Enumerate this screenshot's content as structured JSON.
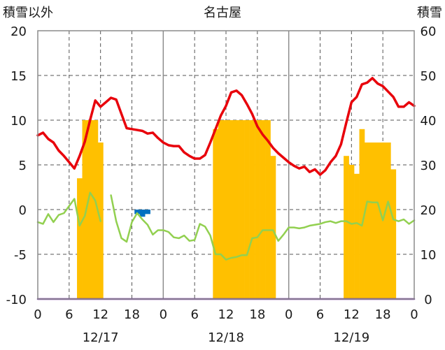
{
  "chart_data": {
    "type": "bar+line",
    "title": "名古屋",
    "left_axis_label": "積雪以外",
    "right_axis_label": "積雪",
    "left_ylim": [
      -10,
      20
    ],
    "left_yticks": [
      -10,
      -5,
      0,
      5,
      10,
      15,
      20
    ],
    "right_ylim": [
      0,
      60
    ],
    "right_yticks": [
      0,
      10,
      20,
      30,
      40,
      50,
      60
    ],
    "x_ticks": [
      "0",
      "6",
      "12",
      "18",
      "0",
      "6",
      "12",
      "18",
      "0",
      "6",
      "12",
      "18",
      "0"
    ],
    "date_labels": [
      "12/17",
      "12/18",
      "12/19"
    ],
    "grid": "dashed at 6h, solid at 0h",
    "series": [
      {
        "color": "#e8000b",
        "axis": "left",
        "values": [
          8.3,
          8.6,
          7.9,
          7.5,
          6.6,
          6.0,
          5.3,
          4.6,
          6.0,
          7.6,
          10.0,
          12.2,
          11.5,
          12.0,
          12.5,
          12.3,
          10.7,
          9.1,
          9.0,
          8.9,
          8.8,
          8.5,
          8.6,
          8.0,
          7.5,
          7.2,
          7.1,
          7.1,
          6.4,
          6.0,
          5.7,
          5.7,
          6.1,
          7.5,
          9.0,
          10.5,
          11.6,
          13.1,
          13.3,
          12.8,
          11.8,
          10.7,
          9.3,
          8.4,
          7.7,
          6.9,
          6.3,
          5.8,
          5.3,
          4.9,
          4.6,
          4.8,
          4.2,
          4.5,
          3.9,
          4.4,
          5.3,
          6.0,
          7.3,
          9.7,
          12.0,
          12.6,
          14.0,
          14.2,
          14.7,
          14.1,
          13.8,
          13.2,
          12.6,
          11.5,
          11.5,
          12.0,
          11.6
        ]
      },
      {
        "color": "#92d050",
        "axis": "left",
        "values": [
          -1.4,
          -1.6,
          -0.5,
          -1.4,
          -0.6,
          -0.4,
          0.4,
          1.2,
          -1.8,
          -0.7,
          1.9,
          1.0,
          -1.3,
          null,
          1.6,
          -1.3,
          -3.2,
          -3.6,
          -1.4,
          -0.4,
          -1.1,
          -1.7,
          -2.8,
          -2.3,
          -2.3,
          -2.5,
          -3.1,
          -3.2,
          -2.9,
          -3.5,
          -3.4,
          -1.6,
          -1.9,
          -2.9,
          -5.0,
          -5.0,
          -5.6,
          -5.4,
          -5.3,
          -5.1,
          -5.1,
          -3.2,
          -3.1,
          -2.3,
          -2.3,
          -2.3,
          -3.5,
          -2.8,
          -2.0,
          -2.0,
          -2.1,
          -2.0,
          -1.8,
          -1.7,
          -1.6,
          -1.4,
          -1.3,
          -1.5,
          -1.3,
          -1.3,
          -1.6,
          -1.5,
          -1.8,
          0.9,
          0.8,
          0.8,
          -1.2,
          0.9,
          -1.1,
          -1.3,
          -1.1,
          -1.6,
          -1.2
        ]
      },
      {
        "color": "#7030a0",
        "axis": "left",
        "values": [
          -10,
          -10,
          -10,
          -10,
          -10,
          -10,
          -10,
          -10,
          -10,
          -10,
          -10,
          -10,
          -10,
          -10,
          -10,
          -10,
          -10,
          -10,
          -10,
          -10,
          -10,
          -10,
          -10,
          -10,
          -10,
          -10,
          -10,
          -10,
          -10,
          -10,
          -10,
          -10,
          -10,
          -10,
          -10,
          -10,
          -10,
          -10,
          -10,
          -10,
          -10,
          -10,
          -10,
          -10,
          -10,
          -10,
          -10,
          -10,
          -10,
          -10,
          -10,
          -10,
          -10,
          -10,
          -10,
          -10,
          -10,
          -10,
          -10,
          -10,
          -10,
          -10,
          -10,
          -10,
          -10,
          -10,
          -10,
          -10,
          -10,
          -10,
          -10,
          -10,
          -10
        ]
      },
      {
        "color": "#ffc000",
        "axis": "right",
        "type": "bar",
        "values": [
          0,
          0,
          0,
          0,
          0,
          0,
          0,
          0,
          27,
          40,
          40,
          40,
          35,
          0,
          0,
          0,
          0,
          0,
          0,
          0,
          0,
          0,
          0,
          0,
          0,
          0,
          0,
          0,
          0,
          0,
          0,
          0,
          0,
          0,
          38,
          40,
          40,
          40,
          40,
          40,
          40,
          40,
          40,
          40,
          40,
          32,
          0,
          0,
          0,
          0,
          0,
          0,
          0,
          0,
          0,
          0,
          0,
          0,
          0,
          32,
          30,
          28,
          38,
          35,
          35,
          35,
          35,
          35,
          29,
          0,
          0,
          0,
          0
        ]
      },
      {
        "color": "#0070c0",
        "axis": "left",
        "type": "bar",
        "values": [
          0,
          0,
          0,
          0,
          0,
          0,
          0,
          0,
          0,
          0,
          0,
          0,
          0,
          0,
          0,
          0,
          0,
          0,
          0,
          -0.5,
          -0.8,
          -0.5,
          0,
          0,
          0,
          0,
          0,
          0,
          0,
          0,
          0,
          0,
          0,
          0,
          0,
          0,
          0,
          0,
          0,
          0,
          0,
          0,
          0,
          0,
          0,
          0,
          0,
          0,
          0,
          0,
          0,
          0,
          0,
          0,
          0,
          0,
          0,
          0,
          0,
          0,
          0,
          0,
          0,
          0,
          0,
          0,
          0,
          0,
          0,
          0,
          0,
          0,
          0
        ]
      }
    ]
  }
}
